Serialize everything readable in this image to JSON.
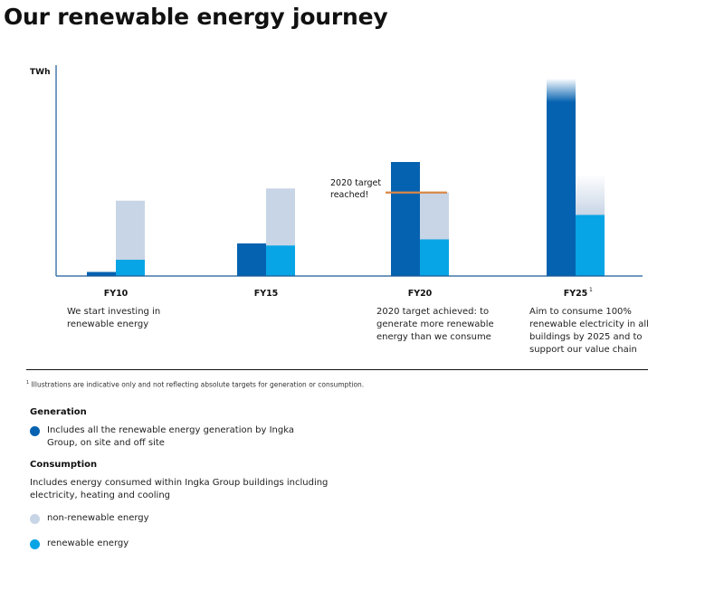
{
  "title": "Our renewable energy journey",
  "colors": {
    "generation": "#0562b0",
    "non_renewable": "#c8d5e6",
    "renewable": "#08a5e6",
    "target_marker": "#d98748",
    "axis": "#1a5a96"
  },
  "chart_data": {
    "type": "bar",
    "ylabel": "TWh",
    "ylim": [
      0,
      100
    ],
    "grid": false,
    "categories": [
      "FY10",
      "FY15",
      "FY20",
      "FY25"
    ],
    "category_superscripts": [
      "",
      "",
      "",
      "1"
    ],
    "generation": [
      2,
      16,
      56,
      97
    ],
    "consumption_renewable": [
      8,
      15,
      18,
      30
    ],
    "consumption_non_renewable": [
      29,
      28,
      23,
      20
    ],
    "fade_top": [
      false,
      false,
      false,
      true
    ],
    "annotation": {
      "text_lines": [
        "2020 target",
        "reached!"
      ],
      "category": "FY20",
      "value": 41
    }
  },
  "descriptions": [
    {
      "category": "FY10",
      "lines": [
        "We start investing in",
        "renewable energy"
      ]
    },
    {
      "category": "FY20",
      "lines": [
        "2020 target achieved: to",
        "generate more renewable",
        "energy than we consume"
      ]
    },
    {
      "category": "FY25",
      "lines": [
        "Aim to consume 100%",
        "renewable electricity in all",
        "buildings by 2025 and to",
        "support our value chain"
      ]
    }
  ],
  "footnote": {
    "marker": "1",
    "text": "Illustrations are indicative only and not reflecting absolute targets for generation or consumption."
  },
  "legend": {
    "generation": {
      "heading": "Generation",
      "item": "Includes all the renewable energy generation by Ingka Group, on site and off site"
    },
    "consumption": {
      "heading": "Consumption",
      "description": "Includes energy consumed within Ingka Group buildings including electricity, heating and cooling",
      "items": [
        {
          "label": "non-renewable energy",
          "color_key": "non_renewable"
        },
        {
          "label": "renewable energy",
          "color_key": "renewable"
        }
      ]
    }
  }
}
